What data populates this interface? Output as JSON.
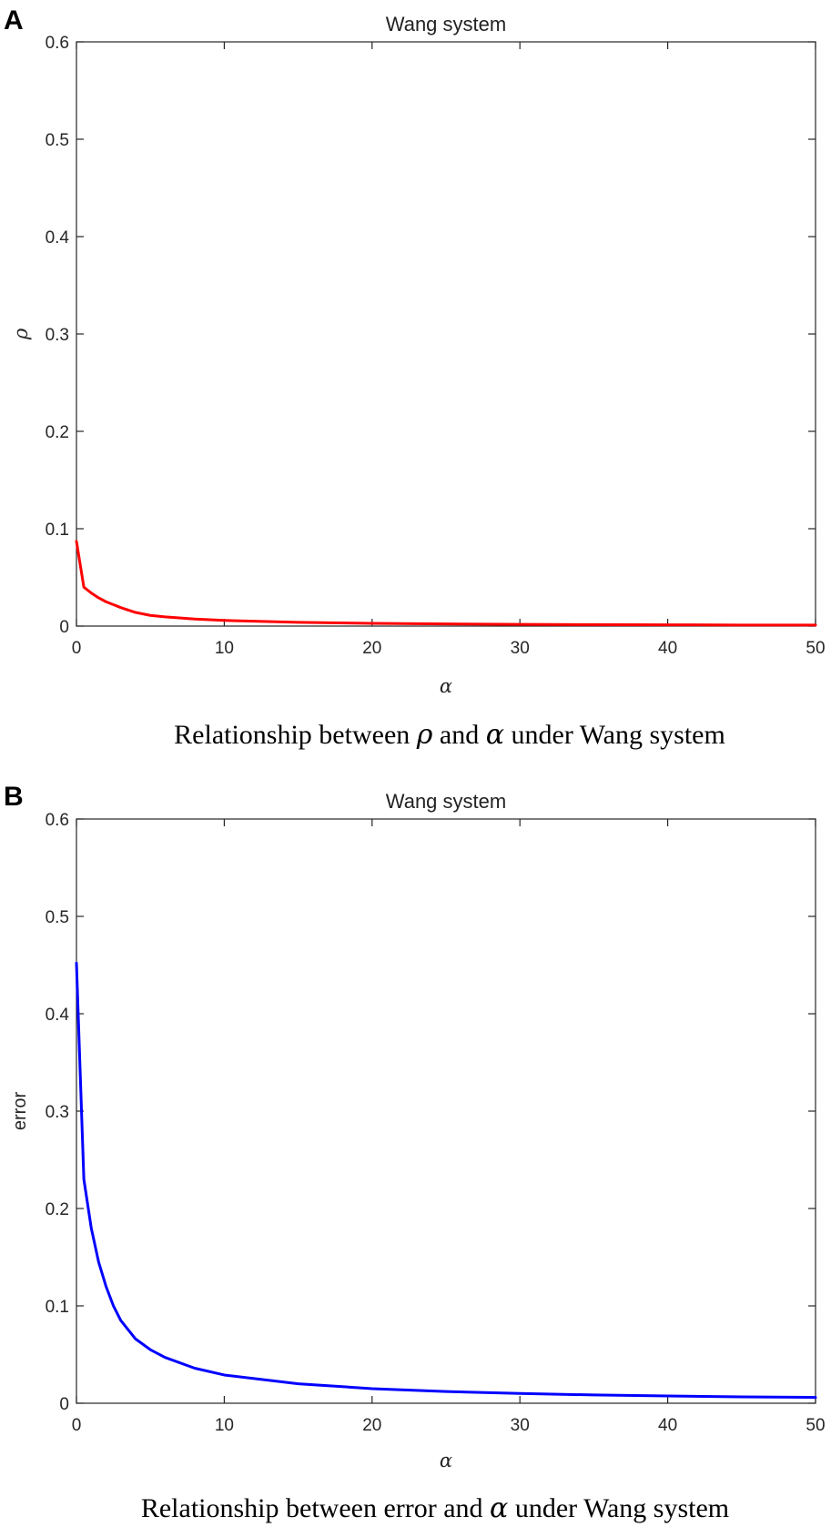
{
  "chart_data": [
    {
      "type": "line",
      "panel": "A",
      "title": "Wang system",
      "xlabel": "α",
      "ylabel": "ρ",
      "xlim": [
        0,
        50
      ],
      "ylim": [
        0,
        0.6
      ],
      "xticks": [
        0,
        10,
        20,
        30,
        40,
        50
      ],
      "yticks": [
        0,
        0.1,
        0.2,
        0.3,
        0.4,
        0.5,
        0.6
      ],
      "grid": false,
      "caption_parts": [
        "Relationship between ",
        "ρ",
        " and ",
        "α",
        " under Wang system"
      ],
      "series": [
        {
          "color": "#ff0000",
          "x": [
            0,
            0.5,
            1,
            1.5,
            2,
            3,
            4,
            5,
            6,
            8,
            10,
            15,
            20,
            25,
            30,
            35,
            40,
            45,
            50
          ],
          "y": [
            0.087,
            0.04,
            0.034,
            0.029,
            0.025,
            0.019,
            0.014,
            0.011,
            0.0095,
            0.0072,
            0.0058,
            0.0038,
            0.0028,
            0.0022,
            0.0018,
            0.0015,
            0.0013,
            0.0011,
            0.001
          ]
        }
      ]
    },
    {
      "type": "line",
      "panel": "B",
      "title": "Wang system",
      "xlabel": "α",
      "ylabel": "error",
      "xlim": [
        0,
        50
      ],
      "ylim": [
        0,
        0.6
      ],
      "xticks": [
        0,
        10,
        20,
        30,
        40,
        50
      ],
      "yticks": [
        0,
        0.1,
        0.2,
        0.3,
        0.4,
        0.5,
        0.6
      ],
      "grid": false,
      "caption_parts": [
        "Relationship between error and ",
        "α",
        " under Wang system"
      ],
      "series": [
        {
          "color": "#0000ff",
          "x": [
            0,
            0.5,
            1,
            1.5,
            2,
            2.5,
            3,
            4,
            5,
            6,
            8,
            10,
            15,
            20,
            25,
            30,
            35,
            40,
            45,
            50
          ],
          "y": [
            0.452,
            0.23,
            0.18,
            0.145,
            0.12,
            0.1,
            0.085,
            0.066,
            0.055,
            0.047,
            0.036,
            0.029,
            0.02,
            0.015,
            0.012,
            0.01,
            0.0085,
            0.0075,
            0.0065,
            0.006
          ]
        }
      ]
    }
  ]
}
